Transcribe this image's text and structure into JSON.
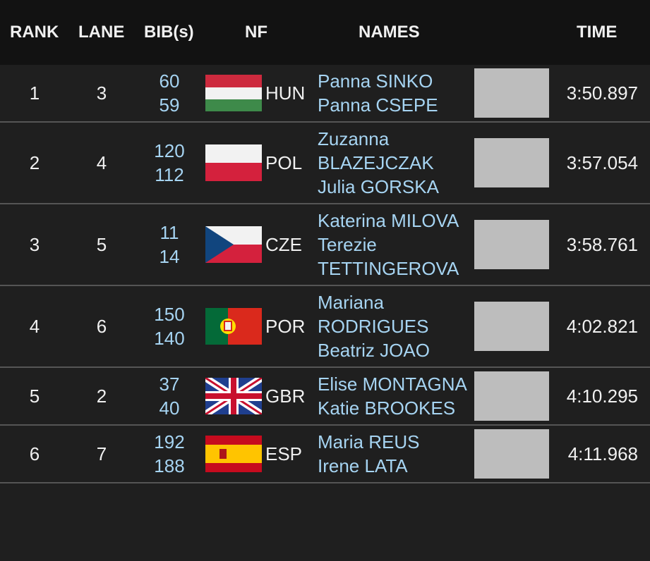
{
  "header": {
    "rank": "RANK",
    "lane": "LANE",
    "bibs": "BIB(s)",
    "nf": "NF",
    "names": "NAMES",
    "time": "TIME"
  },
  "rows": [
    {
      "rank": "1",
      "lane": "3",
      "bibs": [
        "60",
        "59"
      ],
      "nf": "HUN",
      "names": [
        "Panna SINKO",
        "Panna CSEPE"
      ],
      "time": "3:50.897"
    },
    {
      "rank": "2",
      "lane": "4",
      "bibs": [
        "120",
        "112"
      ],
      "nf": "POL",
      "names": [
        "Zuzanna BLAZEJCZAK",
        "Julia GORSKA"
      ],
      "time": "3:57.054"
    },
    {
      "rank": "3",
      "lane": "5",
      "bibs": [
        "11",
        "14"
      ],
      "nf": "CZE",
      "names": [
        "Katerina MILOVA",
        "Terezie TETTINGEROVA"
      ],
      "time": "3:58.761"
    },
    {
      "rank": "4",
      "lane": "6",
      "bibs": [
        "150",
        "140"
      ],
      "nf": "POR",
      "names": [
        "Mariana RODRIGUES",
        "Beatriz JOAO"
      ],
      "time": "4:02.821"
    },
    {
      "rank": "5",
      "lane": "2",
      "bibs": [
        "37",
        "40"
      ],
      "nf": "GBR",
      "names": [
        "Elise MONTAGNA",
        "Katie BROOKES"
      ],
      "time": "4:10.295"
    },
    {
      "rank": "6",
      "lane": "7",
      "bibs": [
        "192",
        "188"
      ],
      "nf": "ESP",
      "names": [
        "Maria REUS",
        "Irene LATA"
      ],
      "time": "4:11.968"
    }
  ]
}
